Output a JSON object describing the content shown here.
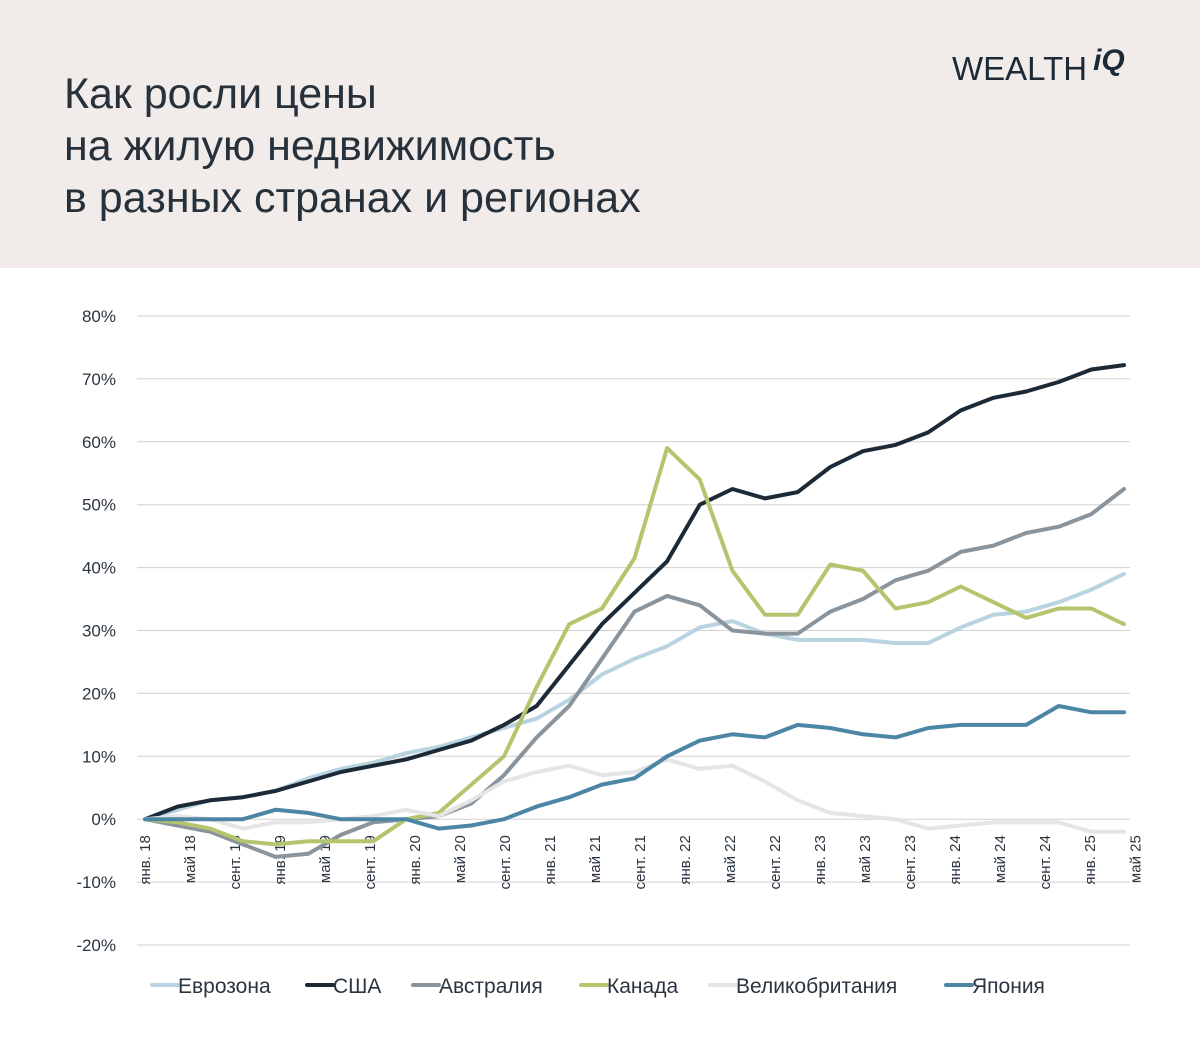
{
  "header": {
    "title_lines": [
      "Как росли цены",
      "на жилую недвижимость",
      "в разных странах и регионах"
    ],
    "logo_main": "WEALTH",
    "logo_suffix": "iQ"
  },
  "colors": {
    "background_header": "#f1ece9",
    "grid": "#d0d0d0",
    "axis_text": "#2b3540"
  },
  "chart_data": {
    "type": "line",
    "title": "Как росли цены на жилую недвижимость в разных странах и регионах",
    "ylim": [
      -20,
      80
    ],
    "yticks": [
      80,
      70,
      60,
      50,
      40,
      30,
      20,
      10,
      0,
      -10,
      -20
    ],
    "ytick_labels": [
      "80%",
      "70%",
      "60%",
      "50%",
      "40%",
      "30%",
      "20%",
      "10%",
      "0%",
      "-10%",
      "-20%"
    ],
    "x_labels": [
      "янв. 18",
      "май 18",
      "сент. 18",
      "янв. 19",
      "май 19",
      "сент. 19",
      "янв. 20",
      "май 20",
      "сент. 20",
      "янв. 21",
      "май 21",
      "сент. 21",
      "янв. 22",
      "май 22",
      "сент. 22",
      "янв. 23",
      "май 23",
      "сент. 23",
      "янв. 24",
      "май 24",
      "сент. 24",
      "янв. 25",
      "май 25"
    ],
    "legend_position": "bottom",
    "series": [
      {
        "name": "Еврозона",
        "color": "#b9d3e0",
        "values": [
          0,
          1.5,
          3,
          3.5,
          4.5,
          6.5,
          8,
          9,
          10.5,
          11.5,
          13,
          14.5,
          16,
          19,
          23,
          25.5,
          27.5,
          30.5,
          31.5,
          29.5,
          28.5,
          28.5,
          28.5,
          28,
          28,
          30.5,
          32.5,
          33,
          34.5,
          36.5,
          39
        ]
      },
      {
        "name": "США",
        "color": "#1c2a38",
        "values": [
          0,
          2,
          3,
          3.5,
          4.5,
          6,
          7.5,
          8.5,
          9.5,
          11,
          12.5,
          15,
          18,
          24.5,
          31,
          36,
          41,
          50,
          52.5,
          51,
          52,
          56,
          58.5,
          59.5,
          61.5,
          65,
          67,
          68,
          69.5,
          71.5,
          72.2
        ]
      },
      {
        "name": "Австралия",
        "color": "#8a949c",
        "values": [
          0,
          -1,
          -2,
          -4,
          -6,
          -5.5,
          -2.5,
          -0.5,
          0,
          0.5,
          2.5,
          7,
          13,
          18,
          25.5,
          33,
          35.5,
          34,
          30,
          29.5,
          29.5,
          33,
          35,
          38,
          39.5,
          42.5,
          43.5,
          45.5,
          46.5,
          48.5,
          52.5
        ]
      },
      {
        "name": "Канада",
        "color": "#b5c56e",
        "values": [
          0,
          -0.5,
          -1.5,
          -3.5,
          -4,
          -3.5,
          -3.5,
          -3.5,
          0,
          1,
          5.5,
          10,
          21,
          31,
          33.5,
          41.5,
          59,
          54,
          39.5,
          32.5,
          32.5,
          40.5,
          39.5,
          33.5,
          34.5,
          37,
          34.5,
          32,
          33.5,
          33.5,
          31
        ]
      },
      {
        "name": "Великобритания",
        "color": "#e5e5e5",
        "values": [
          0,
          0.5,
          0,
          -1.5,
          -0.5,
          -0.5,
          0,
          0.5,
          1.5,
          0.5,
          3,
          6,
          7.5,
          8.5,
          7,
          7.5,
          9.5,
          8,
          8.5,
          6,
          3,
          1,
          0.5,
          0,
          -1.5,
          -1,
          -0.5,
          -0.5,
          -0.5,
          -2,
          -2
        ]
      },
      {
        "name": "Япония",
        "color": "#4d86a4",
        "values": [
          0,
          0,
          0,
          0,
          1.5,
          1,
          0,
          0,
          0,
          -1.5,
          -1,
          0,
          2,
          3.5,
          5.5,
          6.5,
          10,
          12.5,
          13.5,
          13,
          15,
          14.5,
          13.5,
          13,
          14.5,
          15,
          15,
          15,
          18,
          17,
          17
        ]
      }
    ]
  }
}
